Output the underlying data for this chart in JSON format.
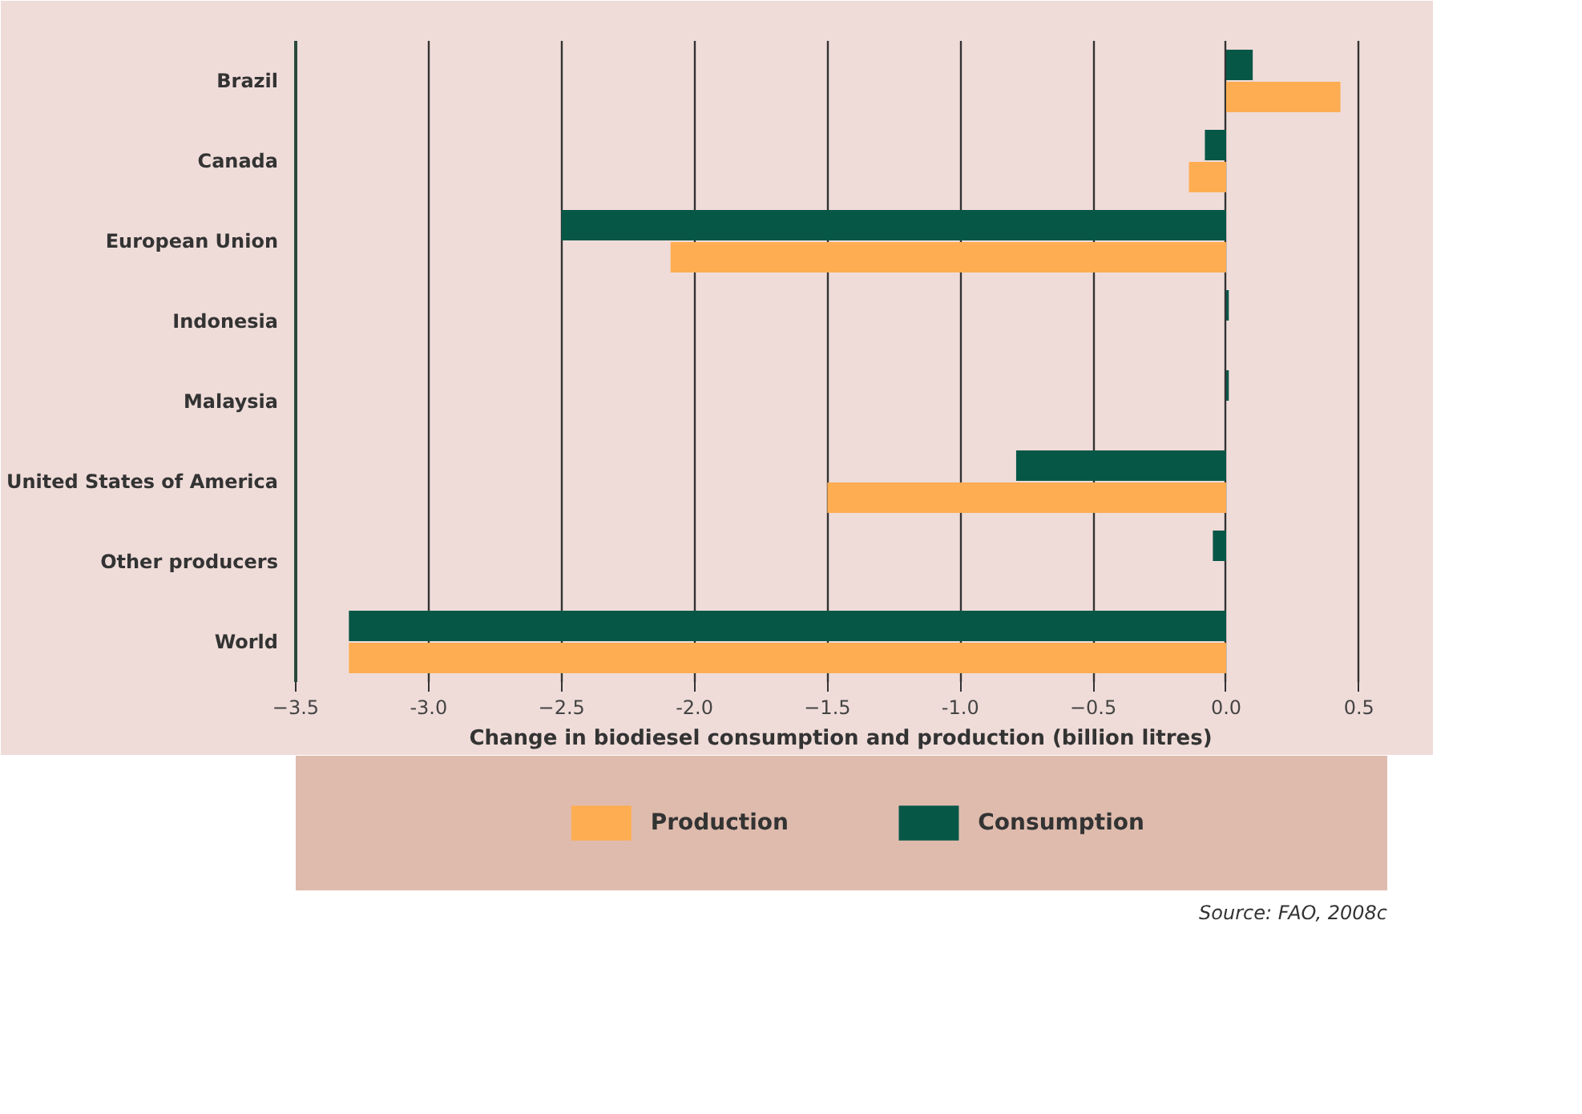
{
  "chart_data": {
    "type": "bar",
    "orientation": "horizontal",
    "xlabel": "Change in biodiesel consumption and production (billion litres)",
    "categories": [
      "Brazil",
      "Canada",
      "European Union",
      "Indonesia",
      "Malaysia",
      "United States of America",
      "Other producers",
      "World"
    ],
    "series": [
      {
        "name": "Production",
        "color": "#ffad52",
        "values": [
          0.43,
          -0.14,
          -2.09,
          0,
          0,
          -1.5,
          0,
          -3.3
        ]
      },
      {
        "name": "Consumption",
        "color": "#075747",
        "values": [
          0.1,
          -0.08,
          -2.5,
          0.01,
          0.01,
          -0.79,
          -0.05,
          -3.3
        ]
      }
    ],
    "xlim": [
      -3.5,
      0.6
    ],
    "xticks": [
      -3.5,
      {
        "value": -3,
        "label": "-3.0"
      },
      -2.5,
      {
        "value": -2,
        "label": "-2.0"
      },
      -1.5,
      {
        "value": -1,
        "label": "-1.0"
      },
      -0.5,
      {
        "value": 0,
        "label": "0.0"
      },
      0.5
    ],
    "grid": "x",
    "legend": "bottom",
    "annotations": [
      "Source: FAO, 2008c"
    ]
  }
}
